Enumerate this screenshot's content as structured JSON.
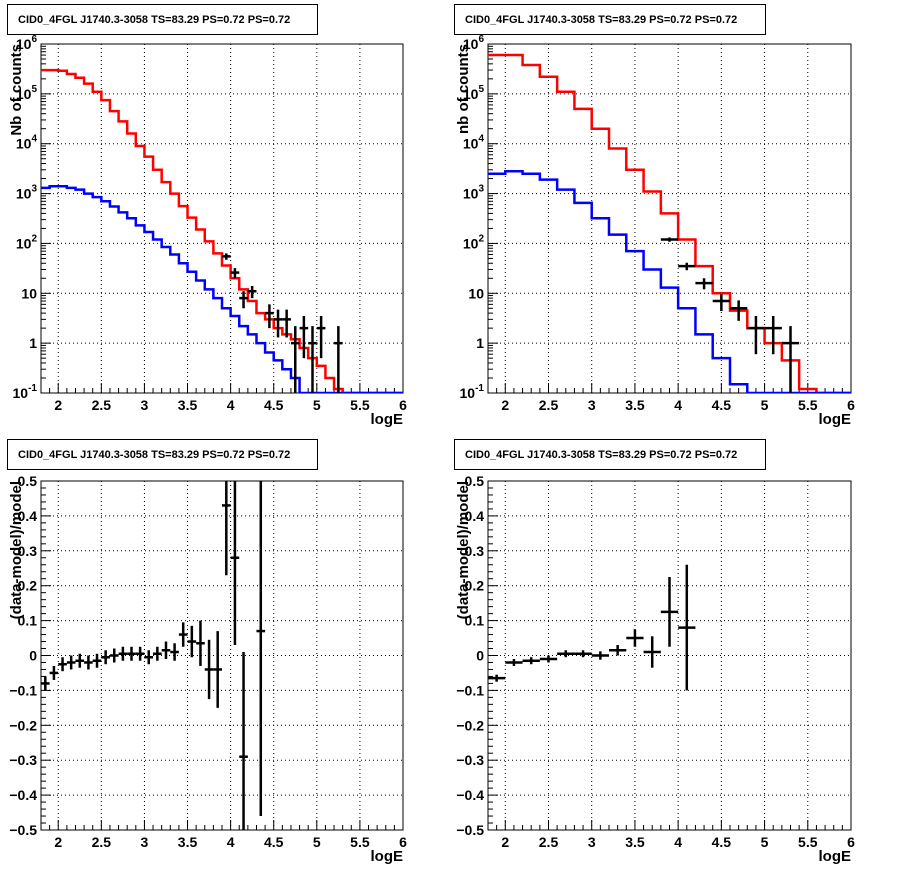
{
  "chart_data": [
    {
      "type": "line",
      "title": "CID0_4FGL J1740.3-3058 TS=83.29 PS=0.72 PS=0.72",
      "xlabel": "logE",
      "ylabel": "Nb of counts",
      "xlim": [
        1.8,
        6.0
      ],
      "ylim": [
        0.1,
        1000000
      ],
      "yscale": "log",
      "grid": true,
      "x_ticks": [
        "2",
        "2.5",
        "3",
        "3.5",
        "4",
        "4.5",
        "5",
        "5.5",
        "6"
      ],
      "y_ticks": [
        "10^-1",
        "1",
        "10",
        "10^2",
        "10^3",
        "10^4",
        "10^5",
        "10^6"
      ],
      "bin_edges": [
        1.8,
        1.9,
        2.0,
        2.1,
        2.2,
        2.3,
        2.4,
        2.5,
        2.6,
        2.7,
        2.8,
        2.9,
        3.0,
        3.1,
        3.2,
        3.3,
        3.4,
        3.5,
        3.6,
        3.7,
        3.8,
        3.9,
        4.0,
        4.1,
        4.2,
        4.3,
        4.4,
        4.5,
        4.6,
        4.7,
        4.8,
        4.9,
        5.0,
        5.1,
        5.2,
        5.3,
        5.4,
        5.5,
        5.6,
        5.7,
        5.8,
        5.9,
        6.0
      ],
      "series": [
        {
          "color": "#ff0000",
          "values": [
            300000,
            300000,
            290000,
            250000,
            210000,
            160000,
            110000,
            75000,
            45000,
            28000,
            16000,
            9000,
            5500,
            3000,
            1700,
            1000,
            560,
            330,
            190,
            110,
            63,
            36,
            20,
            12,
            7,
            4,
            3,
            2,
            1.5,
            1.2,
            0.8,
            0.5,
            0.35,
            0.2,
            0.12,
            0.1,
            0.1,
            0.1,
            0.1,
            0.1,
            0.1,
            0.1
          ]
        },
        {
          "color": "#0000ff",
          "values": [
            1300,
            1400,
            1400,
            1300,
            1200,
            1000,
            850,
            700,
            550,
            420,
            320,
            230,
            170,
            120,
            85,
            60,
            40,
            27,
            18,
            12,
            8,
            5,
            3.5,
            2.2,
            1.5,
            1.0,
            0.65,
            0.45,
            0.3,
            0.2,
            0.1,
            0.1,
            0.1,
            0.1,
            0.1,
            0.1,
            0.1,
            0.1,
            0.1,
            0.1,
            0.1,
            0.1
          ]
        }
      ],
      "data_points": [
        {
          "x": 3.95,
          "y": 55,
          "yerr": [
            8,
            8
          ]
        },
        {
          "x": 4.05,
          "y": 26,
          "yerr": [
            6,
            6
          ]
        },
        {
          "x": 4.15,
          "y": 8,
          "yerr": [
            3,
            3
          ]
        },
        {
          "x": 4.25,
          "y": 11,
          "yerr": [
            3,
            3
          ]
        },
        {
          "x": 4.45,
          "y": 4,
          "yerr": [
            2,
            2
          ]
        },
        {
          "x": 4.55,
          "y": 3,
          "yerr": [
            1.7,
            1.7
          ]
        },
        {
          "x": 4.65,
          "y": 3,
          "yerr": [
            1.7,
            1.7
          ]
        },
        {
          "x": 4.75,
          "y": 1,
          "yerr": [
            0.9,
            1.2
          ]
        },
        {
          "x": 4.85,
          "y": 2,
          "yerr": [
            1.5,
            1.5
          ]
        },
        {
          "x": 4.95,
          "y": 1,
          "yerr": [
            0.9,
            1.2
          ]
        },
        {
          "x": 5.05,
          "y": 2,
          "yerr": [
            1.5,
            1.5
          ]
        },
        {
          "x": 5.25,
          "y": 1,
          "yerr": [
            0.9,
            1.2
          ]
        }
      ]
    },
    {
      "type": "line",
      "title": "CID0_4FGL J1740.3-3058 TS=83.29 PS=0.72 PS=0.72",
      "xlabel": "logE",
      "ylabel": "nb of counts",
      "xlim": [
        1.8,
        6.0
      ],
      "ylim": [
        0.1,
        1000000
      ],
      "yscale": "log",
      "grid": true,
      "x_ticks": [
        "2",
        "2.5",
        "3",
        "3.5",
        "4",
        "4.5",
        "5",
        "5.5",
        "6"
      ],
      "y_ticks": [
        "10^-1",
        "1",
        "10",
        "10^2",
        "10^3",
        "10^4",
        "10^5",
        "10^6"
      ],
      "bin_edges": [
        1.8,
        2.0,
        2.2,
        2.4,
        2.6,
        2.8,
        3.0,
        3.2,
        3.4,
        3.6,
        3.8,
        4.0,
        4.2,
        4.4,
        4.6,
        4.8,
        5.0,
        5.2,
        5.4,
        5.6,
        5.8,
        6.0
      ],
      "series": [
        {
          "color": "#ff0000",
          "values": [
            600000,
            600000,
            380000,
            220000,
            110000,
            50000,
            20000,
            8000,
            3000,
            1100,
            400,
            120,
            35,
            10,
            4.5,
            2,
            1,
            0.45,
            0.12,
            0.1,
            0.1
          ]
        },
        {
          "color": "#0000ff",
          "values": [
            2500,
            2800,
            2500,
            1900,
            1200,
            650,
            320,
            150,
            70,
            30,
            13,
            5,
            1.5,
            0.5,
            0.15,
            0.1,
            0.1,
            0.1,
            0.1,
            0.1,
            0.1
          ]
        }
      ],
      "data_points": [
        {
          "x": 3.9,
          "y": 120,
          "yerr": [
            12,
            12
          ]
        },
        {
          "x": 4.1,
          "y": 35,
          "yerr": [
            6,
            6
          ]
        },
        {
          "x": 4.3,
          "y": 16,
          "yerr": [
            4,
            4
          ]
        },
        {
          "x": 4.5,
          "y": 7,
          "yerr": [
            2.6,
            2.6
          ]
        },
        {
          "x": 4.7,
          "y": 5,
          "yerr": [
            2.2,
            2.2
          ]
        },
        {
          "x": 4.9,
          "y": 2,
          "yerr": [
            1.4,
            1.5
          ]
        },
        {
          "x": 5.1,
          "y": 2,
          "yerr": [
            1.4,
            1.5
          ]
        },
        {
          "x": 5.3,
          "y": 1,
          "yerr": [
            0.9,
            1.2
          ]
        }
      ]
    },
    {
      "type": "scatter",
      "title": "CID0_4FGL J1740.3-3058 TS=83.29 PS=0.72 PS=0.72",
      "xlabel": "logE",
      "ylabel": "(data-model)/model",
      "xlim": [
        1.8,
        6.0
      ],
      "ylim": [
        -0.5,
        0.5
      ],
      "grid": true,
      "x_ticks": [
        "2",
        "2.5",
        "3",
        "3.5",
        "4",
        "4.5",
        "5",
        "5.5",
        "6"
      ],
      "y_ticks": [
        "−0.5",
        "−0.4",
        "−0.3",
        "−0.2",
        "−0.1",
        "0",
        "0.1",
        "0.2",
        "0.3",
        "0.4",
        "0.5"
      ],
      "xerr": 0.05,
      "points": [
        {
          "x": 1.85,
          "y": -0.08,
          "yerr": 0.02
        },
        {
          "x": 1.95,
          "y": -0.05,
          "yerr": 0.02
        },
        {
          "x": 2.05,
          "y": -0.025,
          "yerr": 0.02
        },
        {
          "x": 2.15,
          "y": -0.02,
          "yerr": 0.02
        },
        {
          "x": 2.25,
          "y": -0.015,
          "yerr": 0.02
        },
        {
          "x": 2.35,
          "y": -0.02,
          "yerr": 0.02
        },
        {
          "x": 2.45,
          "y": -0.015,
          "yerr": 0.02
        },
        {
          "x": 2.55,
          "y": -0.005,
          "yerr": 0.02
        },
        {
          "x": 2.65,
          "y": 0.0,
          "yerr": 0.02
        },
        {
          "x": 2.75,
          "y": 0.005,
          "yerr": 0.02
        },
        {
          "x": 2.85,
          "y": 0.005,
          "yerr": 0.02
        },
        {
          "x": 2.95,
          "y": 0.005,
          "yerr": 0.02
        },
        {
          "x": 3.05,
          "y": -0.005,
          "yerr": 0.02
        },
        {
          "x": 3.15,
          "y": 0.005,
          "yerr": 0.02
        },
        {
          "x": 3.25,
          "y": 0.015,
          "yerr": 0.025
        },
        {
          "x": 3.35,
          "y": 0.01,
          "yerr": 0.025
        },
        {
          "x": 3.45,
          "y": 0.06,
          "yerr": 0.035
        },
        {
          "x": 3.55,
          "y": 0.04,
          "yerr": 0.045
        },
        {
          "x": 3.65,
          "y": 0.035,
          "yerr": 0.065
        },
        {
          "x": 3.75,
          "y": -0.04,
          "yerr": 0.085
        },
        {
          "x": 3.85,
          "y": -0.04,
          "yerr": 0.11
        },
        {
          "x": 3.95,
          "y": 0.43,
          "yerr": 0.2
        },
        {
          "x": 4.05,
          "y": 0.28,
          "yerr": 0.25
        },
        {
          "x": 4.15,
          "y": -0.29,
          "yerr": 0.3
        },
        {
          "x": 4.35,
          "y": 0.07,
          "yerr": 0.53
        }
      ]
    },
    {
      "type": "scatter",
      "title": "CID0_4FGL J1740.3-3058 TS=83.29 PS=0.72 PS=0.72",
      "xlabel": "logE",
      "ylabel": "(data-model)/model",
      "xlim": [
        1.8,
        6.0
      ],
      "ylim": [
        -0.5,
        0.5
      ],
      "grid": true,
      "x_ticks": [
        "2",
        "2.5",
        "3",
        "3.5",
        "4",
        "4.5",
        "5",
        "5.5",
        "6"
      ],
      "y_ticks": [
        "−0.5",
        "−0.4",
        "−0.3",
        "−0.2",
        "−0.1",
        "0",
        "0.1",
        "0.2",
        "0.3",
        "0.4",
        "0.5"
      ],
      "xerr": 0.1,
      "points": [
        {
          "x": 1.9,
          "y": -0.065,
          "yerr": 0.01
        },
        {
          "x": 2.1,
          "y": -0.02,
          "yerr": 0.01
        },
        {
          "x": 2.3,
          "y": -0.015,
          "yerr": 0.01
        },
        {
          "x": 2.5,
          "y": -0.01,
          "yerr": 0.01
        },
        {
          "x": 2.7,
          "y": 0.005,
          "yerr": 0.01
        },
        {
          "x": 2.9,
          "y": 0.005,
          "yerr": 0.01
        },
        {
          "x": 3.1,
          "y": 0.0,
          "yerr": 0.012
        },
        {
          "x": 3.3,
          "y": 0.015,
          "yerr": 0.015
        },
        {
          "x": 3.5,
          "y": 0.05,
          "yerr": 0.025
        },
        {
          "x": 3.7,
          "y": 0.01,
          "yerr": 0.045
        },
        {
          "x": 3.9,
          "y": 0.125,
          "yerr": 0.1
        },
        {
          "x": 4.1,
          "y": 0.08,
          "yerr": 0.18
        }
      ]
    }
  ]
}
